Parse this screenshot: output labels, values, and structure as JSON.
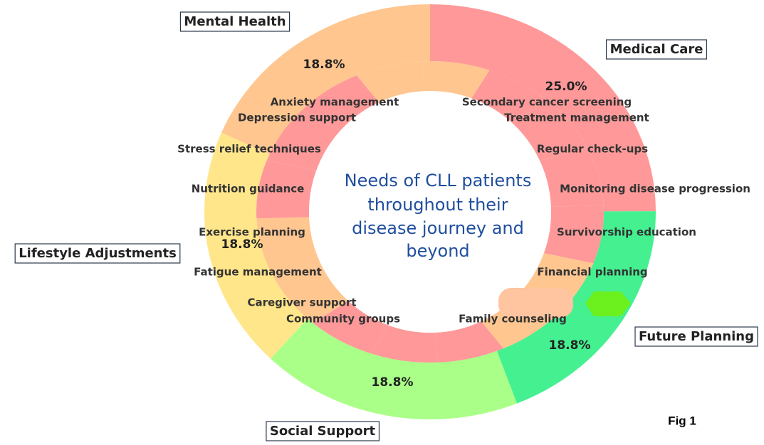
{
  "chart_data": {
    "type": "sunburst",
    "center_text": [
      "Needs of CLL patients",
      "throughout their",
      "disease journey and",
      "beyond"
    ],
    "caption": "Fig 1",
    "categories": [
      "Medical Care",
      "Future Planning",
      "Social Support",
      "Lifestyle Adjustments",
      "Mental Health"
    ],
    "values": [
      25.0,
      18.8,
      18.8,
      18.8,
      18.8
    ],
    "value_labels": [
      "25.0%",
      "18.8%",
      "18.8%",
      "18.8%",
      "18.8%"
    ],
    "colors": [
      "#ff9999",
      "#44f090",
      "#aaff88",
      "#ffe68a",
      "#ffc690"
    ],
    "children": [
      {
        "labels": [
          "Secondary cancer screening",
          "Treatment management",
          "Regular check-ups",
          "Monitoring disease progression"
        ],
        "values": [
          6.25,
          6.25,
          6.25,
          6.25
        ],
        "colors": [
          "#ff9999",
          "#ff9999",
          "#ff9999",
          "#ff9999"
        ]
      },
      {
        "labels": [
          "Survivorship education",
          "Financial planning",
          null
        ],
        "values": [
          6.25,
          6.25,
          6.25
        ],
        "colors": [
          "#ffc690",
          "#ffc690",
          "#ff9999"
        ]
      },
      {
        "labels": [
          "Family counseling",
          "Community groups",
          "Caregiver support"
        ],
        "values": [
          6.25,
          6.25,
          6.25
        ],
        "colors": [
          "#ff9999",
          "#ff9999",
          "#ffc690"
        ]
      },
      {
        "labels": [
          "Fatigue management",
          "Exercise planning",
          "Nutrition guidance"
        ],
        "values": [
          6.25,
          6.25,
          6.25
        ],
        "colors": [
          "#ffc690",
          "#ff9999",
          "#ff9999"
        ]
      },
      {
        "labels": [
          "Stress relief techniques",
          "Depression support",
          "Anxiety management"
        ],
        "values": [
          6.25,
          6.25,
          6.25
        ],
        "colors": [
          "#ff9999",
          "#ffc690",
          "#ffc690"
        ]
      }
    ]
  }
}
